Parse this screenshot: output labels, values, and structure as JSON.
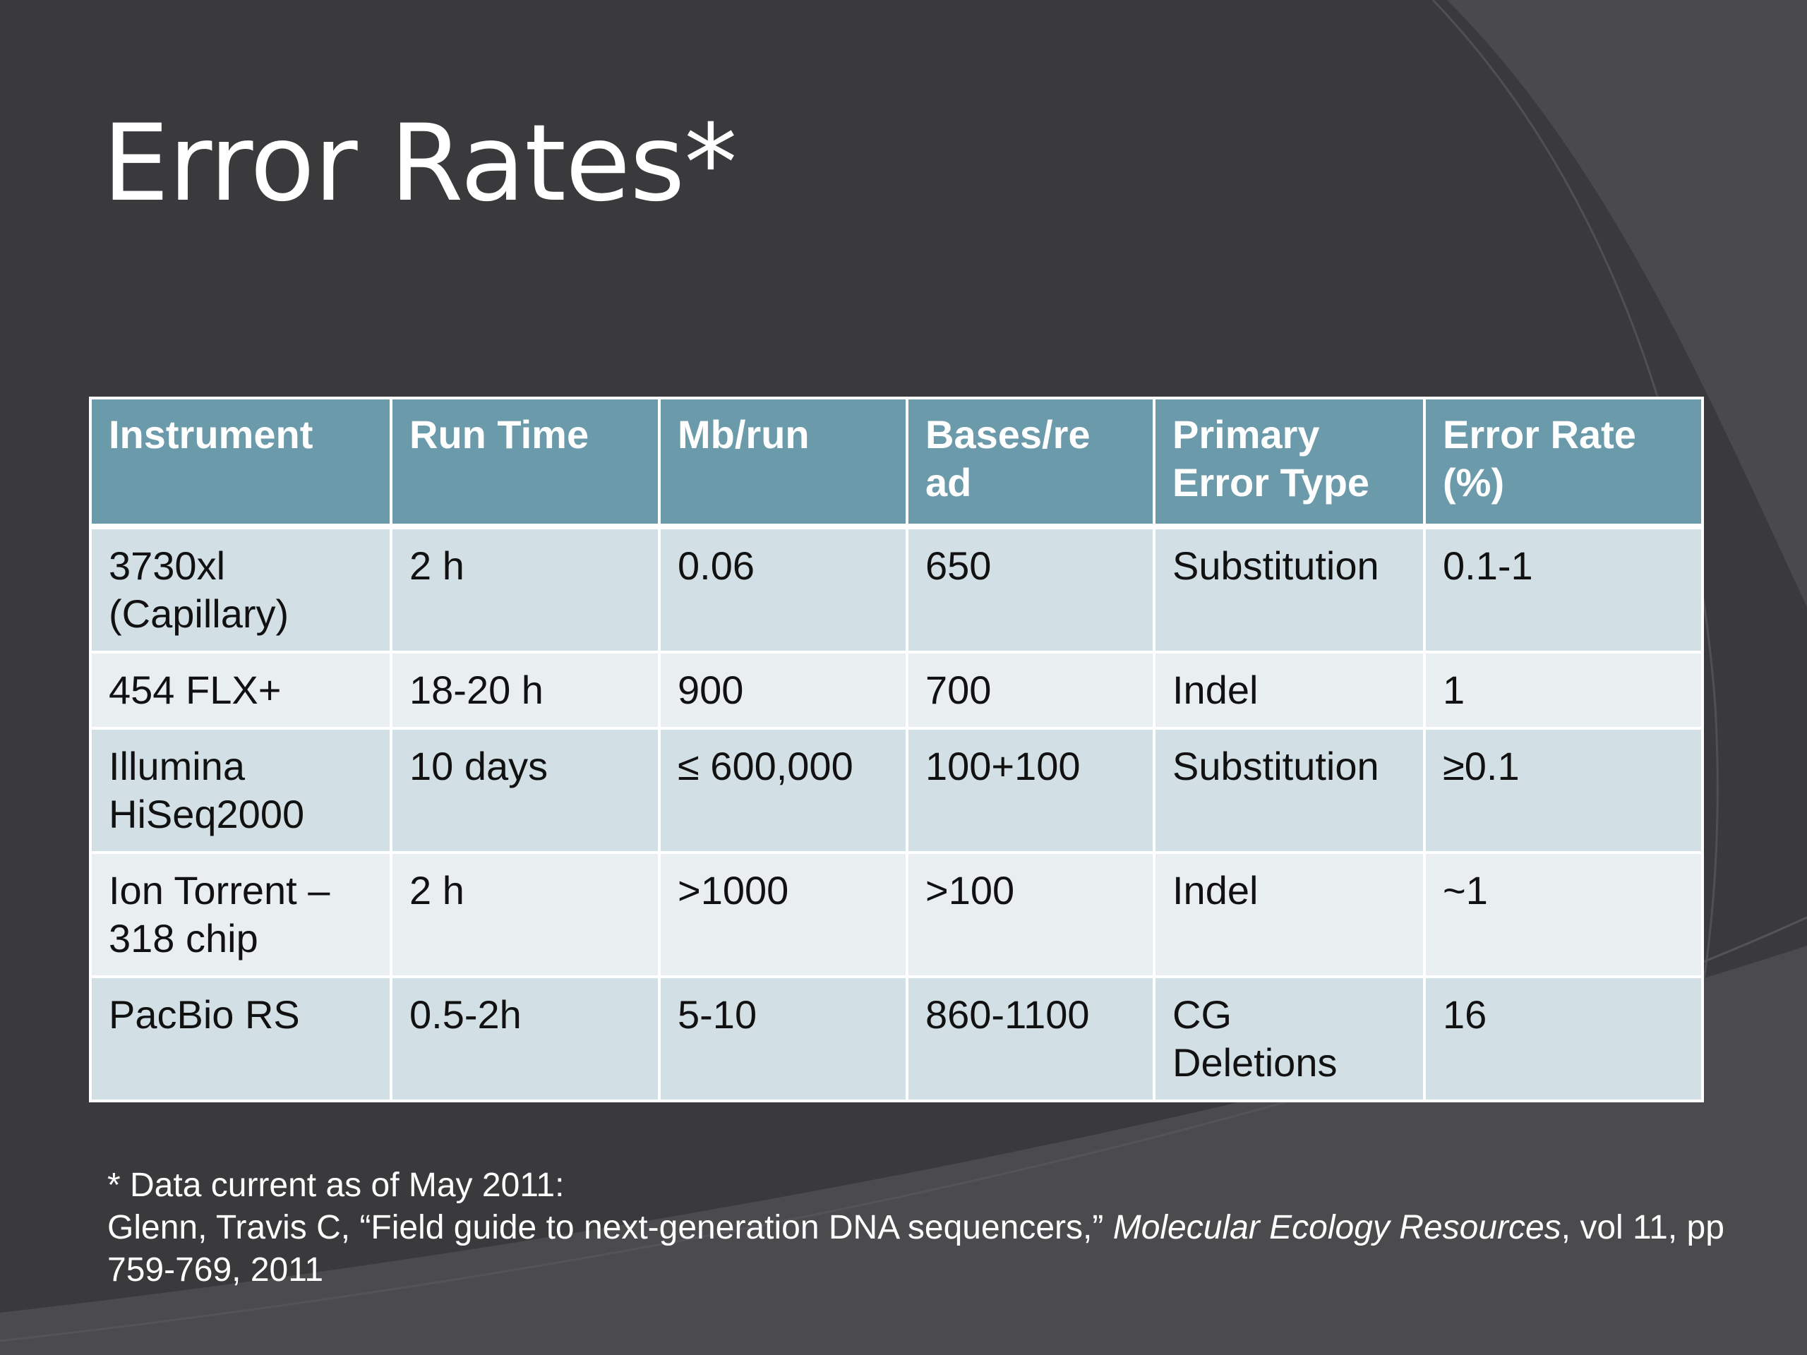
{
  "slide": {
    "title": "Error Rates*",
    "background_color": "#3a3a3c",
    "header_color": "#6b9aab",
    "row_odd_color": "#d2dfe4",
    "row_even_color": "#e9eff1"
  },
  "table": {
    "headers": [
      "Instrument",
      "Run Time",
      "Mb/run",
      "Bases/read",
      "Primary Error Type",
      "Error Rate (%)"
    ],
    "header_display": [
      "Instrument",
      "Run Time",
      "Mb/run",
      "Bases/re ad",
      "Primary Error Type",
      "Error Rate (%)"
    ],
    "rows": [
      [
        "3730xl (Capillary)",
        "2 h",
        "0.06",
        "650",
        "Substitution",
        "0.1-1"
      ],
      [
        "454 FLX+",
        "18-20 h",
        "900",
        "700",
        "Indel",
        "1"
      ],
      [
        "Illumina HiSeq2000",
        "10 days",
        "≤ 600,000",
        "100+100",
        "Substitution",
        "≥0.1"
      ],
      [
        "Ion Torrent – 318 chip",
        "2 h",
        ">1000",
        ">100",
        "Indel",
        "~1"
      ],
      [
        "PacBio RS",
        "0.5-2h",
        "5-10",
        "860-1100",
        "CG Deletions",
        "16"
      ]
    ]
  },
  "footnote": {
    "line1": "* Data current as of May 2011:",
    "citation_prefix": "Glenn, Travis C, “Field guide to next-generation DNA sequencers,” ",
    "journal": "Molecular Ecology Resources",
    "citation_suffix": ", vol 11, pp 759-769, 2011"
  }
}
